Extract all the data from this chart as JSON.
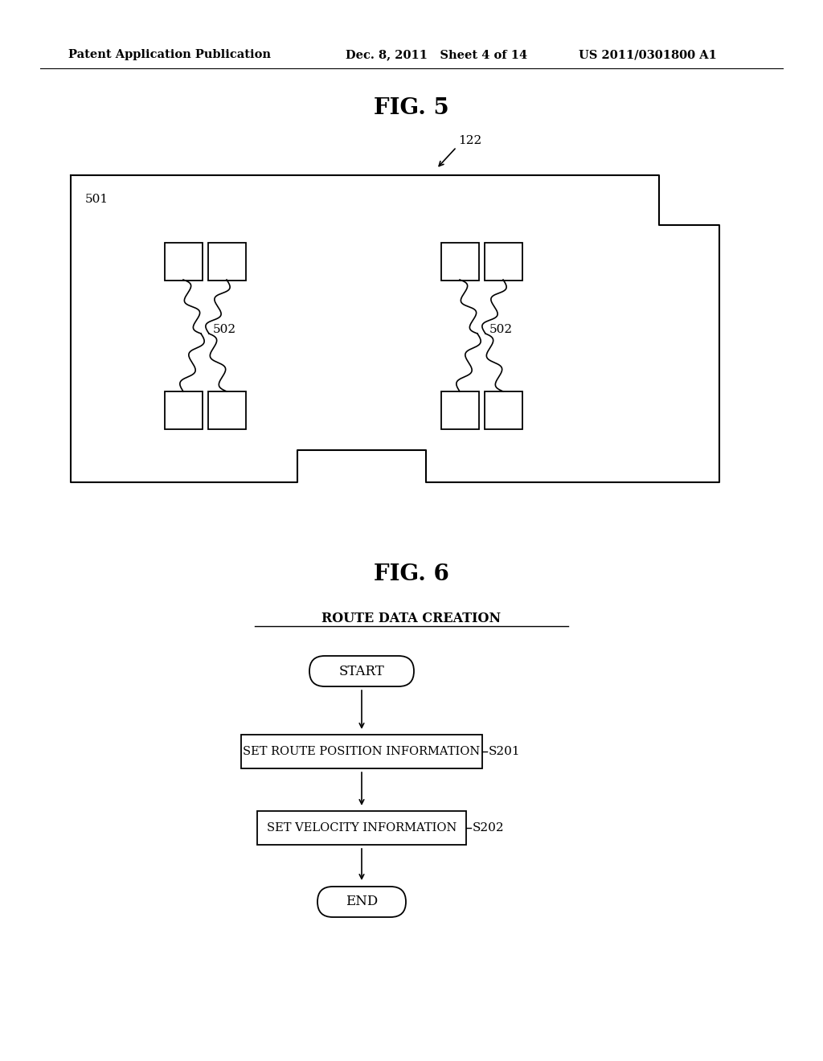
{
  "bg_color": "#ffffff",
  "header_left": "Patent Application Publication",
  "header_mid": "Dec. 8, 2011   Sheet 4 of 14",
  "header_right": "US 2011/0301800 A1",
  "fig5_title": "FIG. 5",
  "fig6_title": "FIG. 6",
  "label_122": "122",
  "label_501": "501",
  "label_502a": "502",
  "label_502b": "502",
  "flowchart_title": "ROUTE DATA CREATION",
  "start_label": "START",
  "step1_label": "SET ROUTE POSITION INFORMATION",
  "step2_label": "SET VELOCITY INFORMATION",
  "end_label": "END",
  "step1_id": "S201",
  "step2_id": "S202"
}
